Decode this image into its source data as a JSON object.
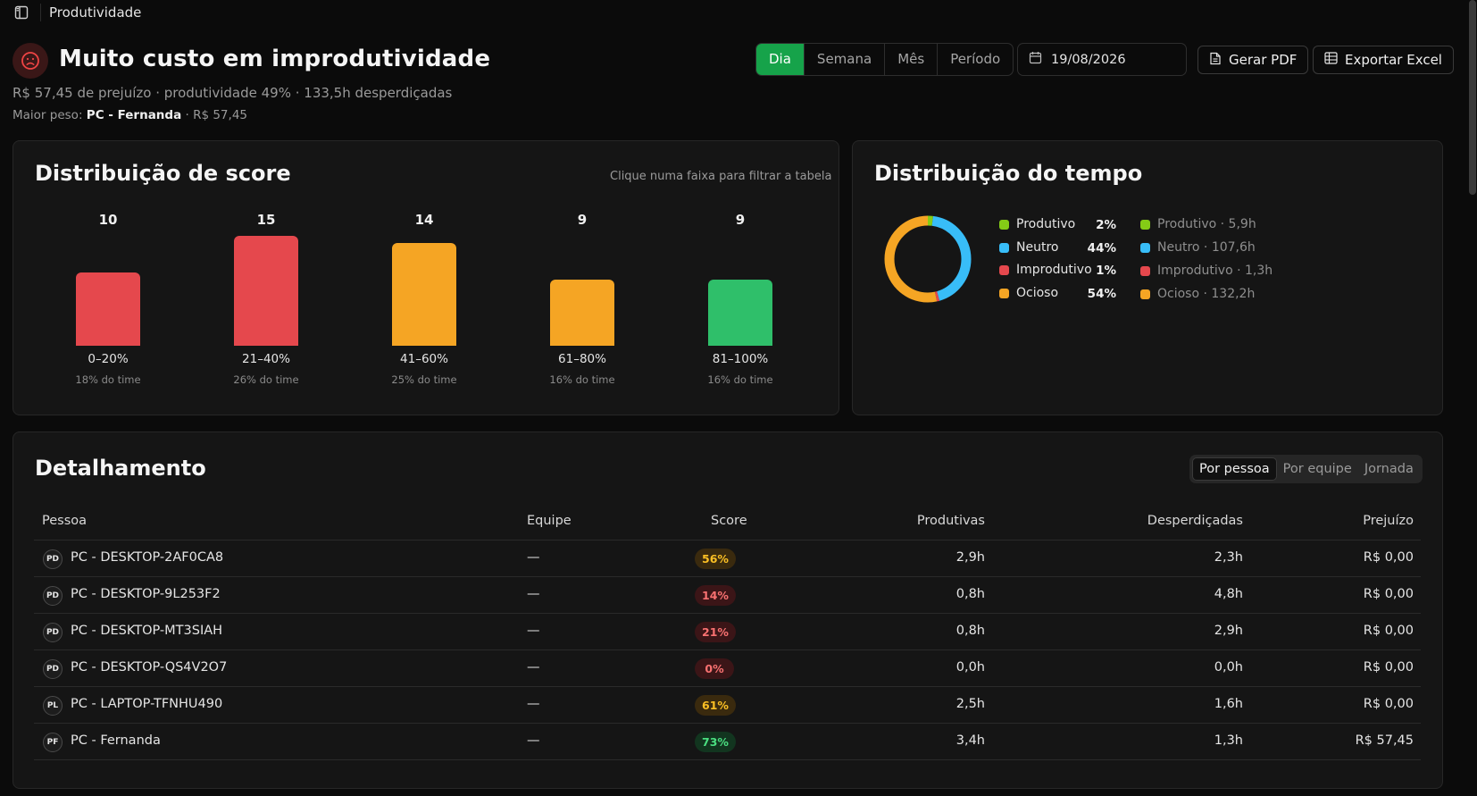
{
  "topbar": {
    "title": "Produtividade"
  },
  "header": {
    "title": "Muito custo em improdutividade",
    "subtitle": "R$ 57,45 de prejuízo · produtividade 49% · 133,5h desperdiçadas",
    "meta_label": "Maior peso:",
    "meta_name": "PC - Fernanda",
    "meta_value": "· R$ 57,45"
  },
  "period": {
    "options": [
      "Dia",
      "Semana",
      "Mês",
      "Período"
    ],
    "selected": "Dia"
  },
  "date": {
    "value": "19/08/2026"
  },
  "actions": {
    "pdf_label": "Gerar PDF",
    "excel_label": "Exportar Excel"
  },
  "score_card": {
    "title": "Distribuição de score",
    "hint": "Clique numa faixa para filtrar a tabela"
  },
  "chart_data": {
    "type": "bar",
    "categories": [
      "0–20%",
      "21–40%",
      "41–60%",
      "61–80%",
      "81–100%"
    ],
    "values": [
      10,
      15,
      14,
      9,
      9
    ],
    "shares": [
      "18% do time",
      "26% do time",
      "25% do time",
      "16% do time",
      "16% do time"
    ],
    "colors": [
      "#e5484d",
      "#e5484d",
      "#f5a524",
      "#f5a524",
      "#2fbf6a"
    ]
  },
  "time_card": {
    "title": "Distribuição do tempo",
    "legend": [
      {
        "label": "Produtivo",
        "pct": "2%",
        "color": "#84cc16"
      },
      {
        "label": "Neutro",
        "pct": "44%",
        "color": "#38bdf8"
      },
      {
        "label": "Improdutivo",
        "pct": "1%",
        "color": "#e5484d"
      },
      {
        "label": "Ocioso",
        "pct": "54%",
        "color": "#f5a524"
      }
    ],
    "legend_hours": [
      "Produtivo · 5,9h",
      "Neutro · 107,6h",
      "Improdutivo · 1,3h",
      "Ocioso · 132,2h"
    ],
    "donut_values": [
      2,
      44,
      1,
      54
    ]
  },
  "detail": {
    "title": "Detalhamento",
    "tabs": [
      "Por pessoa",
      "Por equipe",
      "Jornada"
    ],
    "active_tab": "Por pessoa",
    "columns": [
      "Pessoa",
      "Equipe",
      "Score",
      "Produtivas",
      "Desperdiçadas",
      "Prejuízo"
    ],
    "rows": [
      {
        "initials": "PD",
        "name": "PC - DESKTOP-2AF0CA8",
        "team": "—",
        "score": "56%",
        "score_kind": "mid",
        "prod": "2,9h",
        "waste": "2,3h",
        "loss": "R$ 0,00"
      },
      {
        "initials": "PD",
        "name": "PC - DESKTOP-9L253F2",
        "team": "—",
        "score": "14%",
        "score_kind": "low",
        "prod": "0,8h",
        "waste": "4,8h",
        "loss": "R$ 0,00"
      },
      {
        "initials": "PD",
        "name": "PC - DESKTOP-MT3SIAH",
        "team": "—",
        "score": "21%",
        "score_kind": "low",
        "prod": "0,8h",
        "waste": "2,9h",
        "loss": "R$ 0,00"
      },
      {
        "initials": "PD",
        "name": "PC - DESKTOP-QS4V2O7",
        "team": "—",
        "score": "0%",
        "score_kind": "low",
        "prod": "0,0h",
        "waste": "0,0h",
        "loss": "R$ 0,00"
      },
      {
        "initials": "PL",
        "name": "PC - LAPTOP-TFNHU490",
        "team": "—",
        "score": "61%",
        "score_kind": "mid",
        "prod": "2,5h",
        "waste": "1,6h",
        "loss": "R$ 0,00"
      },
      {
        "initials": "PF",
        "name": "PC - Fernanda",
        "team": "—",
        "score": "73%",
        "score_kind": "high",
        "prod": "3,4h",
        "waste": "1,3h",
        "loss": "R$ 57,45"
      }
    ]
  },
  "colors": {
    "accent": "#16a34a",
    "danger": "#e5484d",
    "warning": "#f5a524",
    "success": "#2fbf6a",
    "info": "#38bdf8"
  }
}
